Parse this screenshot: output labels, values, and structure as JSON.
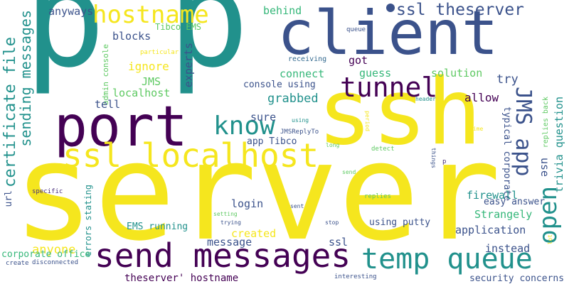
{
  "words": {
    "server": "server",
    "p1": "p",
    "p2": "p",
    "ssh": "ssh",
    "client": "client",
    "port": "port",
    "ssl_localhost": "ssl localhost",
    "send_messages": "send messages",
    "temp_queue": "temp queue",
    "tunnel": "tunnel",
    "know": "know",
    "hostname": "hostname",
    "ssl_theserver": "ssl theserver",
    "jms_app": "JMS app",
    "open": "open",
    "certificate_file": "certificate file",
    "sending_messages": "sending messages",
    "anyone": "anyone",
    "anyways": "anyways",
    "behind": "behind",
    "tibco_ems": "Tibco EMS",
    "blocks": "blocks",
    "ignore": "ignore",
    "jms": "JMS",
    "localhost": "localhost",
    "tell": "tell",
    "experts": "experts",
    "admin_console": "admin console",
    "particular": "particular",
    "receiving": "receiving",
    "queue": "queue",
    "got": "got",
    "connect": "connect",
    "guess": "guess",
    "solution": "solution",
    "try": "try",
    "console_using": "console using",
    "grabbed": "grabbed",
    "allow": "allow",
    "header": "header",
    "typical_corporate": "typical corporate",
    "replies_back": "replies back",
    "trivia_question": "trivia question",
    "sure": "sure",
    "using_small": "using",
    "app_tibco": "app Tibco",
    "jmsreplyto": "JMSReplyTo",
    "period": "period",
    "time": "time",
    "things": "things",
    "p_small": "p",
    "long": "long",
    "detect": "detect",
    "use": "use",
    "send": "send",
    "url": "url",
    "login": "login",
    "firewall": "firewall",
    "specific": "specific",
    "replies": "replies",
    "strangely": "Strangely",
    "easy_answer": "easy answer",
    "errors_stating": "errors stating",
    "sent": "sent",
    "setting": "setting",
    "trying": "trying",
    "stop": "stop",
    "using_putty": "using putty",
    "ems_running": "EMS running",
    "application": "application",
    "created": "created",
    "message": "message",
    "ssl": "ssl",
    "instead": "instead",
    "corporate_office": "corporate office",
    "create": "create",
    "disconnected": "disconnected",
    "interesting": "interesting",
    "theserver_hostname": "theserver' hostname",
    "security_concerns": "security concerns",
    "lot": "lot"
  },
  "palette": {
    "purple": "#440154",
    "navy": "#3b528b",
    "teal": "#21918c",
    "green": "#5ec962",
    "yellow": "#f5e61e",
    "background": "#ffffff"
  }
}
